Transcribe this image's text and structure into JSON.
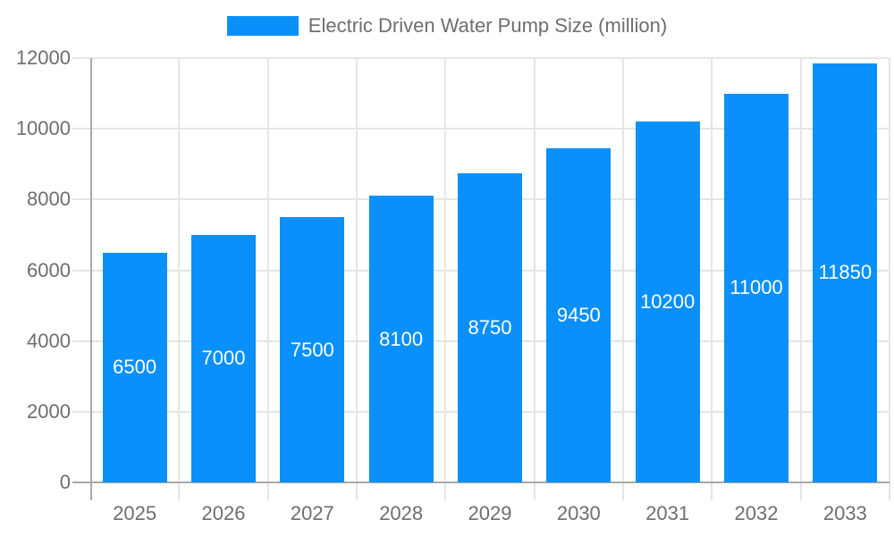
{
  "legend": {
    "label": "Electric Driven Water Pump Size (million)"
  },
  "chart_data": {
    "type": "bar",
    "title": "Electric Driven Water Pump Size (million)",
    "categories": [
      "2025",
      "2026",
      "2027",
      "2028",
      "2029",
      "2030",
      "2031",
      "2032",
      "2033"
    ],
    "values": [
      6500,
      7000,
      7500,
      8100,
      8750,
      9450,
      10200,
      11000,
      11850
    ],
    "xlabel": "",
    "ylabel": "",
    "ylim": [
      0,
      12000
    ],
    "yticks": [
      0,
      2000,
      4000,
      6000,
      8000,
      10000,
      12000
    ],
    "grid": true,
    "legend_position": "top-center",
    "colors": {
      "bar": "#0990fa",
      "bar_label": "#ffffff",
      "grid": "#e5e5e5",
      "axis_line": "#a8a8a8",
      "tick_text": "#6e6e6e"
    }
  }
}
